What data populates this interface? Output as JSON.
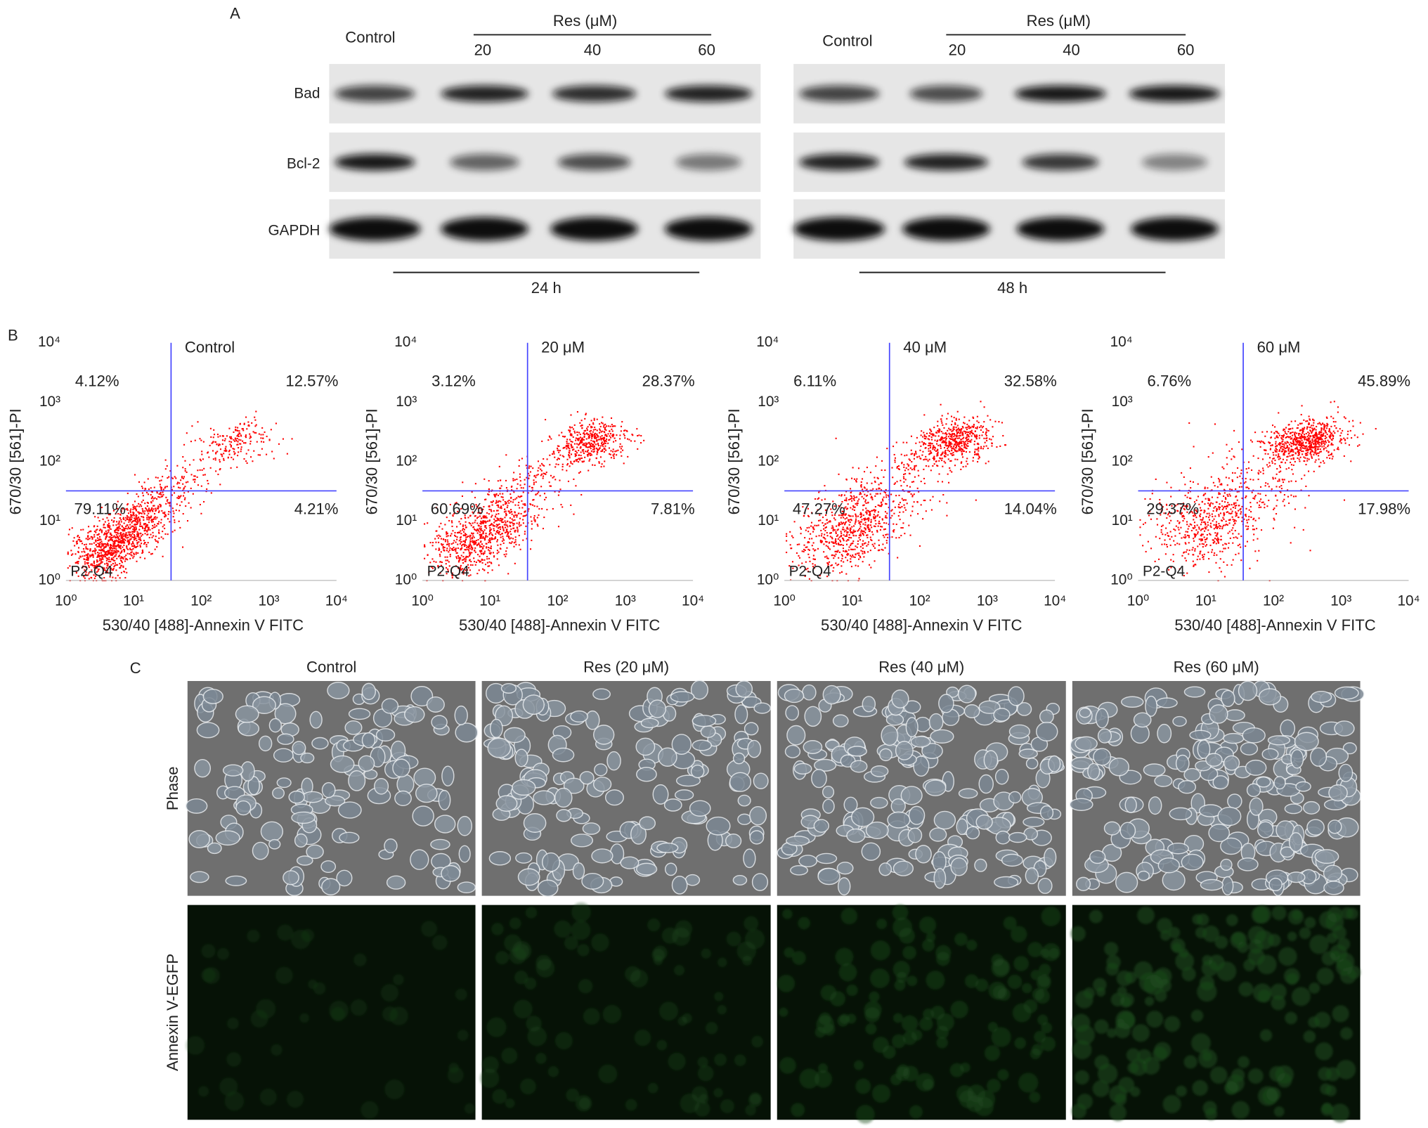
{
  "panel_a": {
    "label": "A",
    "rows": [
      "Bad",
      "Bcl-2",
      "GAPDH"
    ],
    "blots": [
      {
        "control": "Control",
        "treatment": "Res (μM)",
        "doses": [
          "20",
          "40",
          "60"
        ],
        "time": "24 h"
      },
      {
        "control": "Control",
        "treatment": "Res (μM)",
        "doses": [
          "20",
          "40",
          "60"
        ],
        "time": "48 h"
      }
    ]
  },
  "panel_b": {
    "label": "B",
    "x_label": "530/40 [488]-Annexin V FITC",
    "y_label": "670/30 [561]-PI",
    "ticks": [
      "10⁰",
      "10¹",
      "10²",
      "10³",
      "10⁴"
    ],
    "gate": "P2-Q4",
    "plots": [
      {
        "title": "Control",
        "upper_left": "4.12%",
        "upper_right": "12.57%",
        "lower_left": "79.11%",
        "lower_right": "4.21%"
      },
      {
        "title": "20 μM",
        "upper_left": "3.12%",
        "upper_right": "28.37%",
        "lower_left": "60.69%",
        "lower_right": "7.81%"
      },
      {
        "title": "40 μM",
        "upper_left": "6.11%",
        "upper_right": "32.58%",
        "lower_left": "47.27%",
        "lower_right": "14.04%"
      },
      {
        "title": "60 μM",
        "upper_left": "6.76%",
        "upper_right": "45.89%",
        "lower_left": "29.37%",
        "lower_right": "17.98%"
      }
    ]
  },
  "panel_c": {
    "label": "C",
    "columns": [
      "Control",
      "Res (20 μM)",
      "Res (40 μM)",
      "Res (60 μM)"
    ],
    "rows": [
      "Phase",
      "Annexin V-EGFP"
    ]
  }
}
